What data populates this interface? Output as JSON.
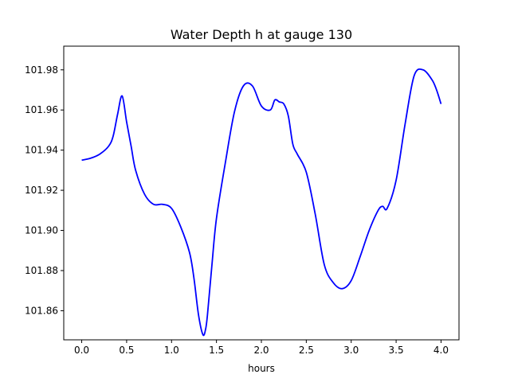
{
  "chart_data": {
    "type": "line",
    "title": "Water Depth h at gauge 130",
    "xlabel": "hours",
    "ylabel": "",
    "xlim": [
      -0.2,
      4.2
    ],
    "ylim": [
      101.8455,
      101.9918
    ],
    "grid": false,
    "legend": "none",
    "x_ticks": [
      0.0,
      0.5,
      1.0,
      1.5,
      2.0,
      2.5,
      3.0,
      3.5,
      4.0
    ],
    "x_tick_labels": [
      "0.0",
      "0.5",
      "1.0",
      "1.5",
      "2.0",
      "2.5",
      "3.0",
      "3.5",
      "4.0"
    ],
    "y_ticks": [
      101.86,
      101.88,
      101.9,
      101.92,
      101.94,
      101.96,
      101.98
    ],
    "y_tick_labels": [
      "101.86",
      "101.88",
      "101.90",
      "101.92",
      "101.94",
      "101.96",
      "101.98"
    ],
    "series": [
      {
        "color": "#0000ff",
        "x": [
          0.0,
          0.1,
          0.2,
          0.3,
          0.35,
          0.4,
          0.45,
          0.5,
          0.55,
          0.6,
          0.7,
          0.8,
          0.9,
          1.0,
          1.1,
          1.2,
          1.25,
          1.3,
          1.35,
          1.38,
          1.4,
          1.45,
          1.5,
          1.6,
          1.7,
          1.8,
          1.9,
          2.0,
          2.1,
          2.15,
          2.2,
          2.25,
          2.3,
          2.35,
          2.4,
          2.5,
          2.6,
          2.7,
          2.8,
          2.9,
          3.0,
          3.1,
          3.2,
          3.3,
          3.35,
          3.4,
          3.5,
          3.6,
          3.7,
          3.8,
          3.9,
          3.95,
          4.0
        ],
        "y": [
          101.935,
          101.936,
          101.938,
          101.942,
          101.947,
          101.958,
          101.967,
          101.954,
          101.942,
          101.93,
          101.918,
          101.913,
          101.913,
          101.911,
          101.902,
          101.889,
          101.876,
          101.858,
          101.848,
          101.851,
          101.858,
          101.883,
          101.906,
          101.934,
          101.959,
          101.972,
          101.972,
          101.962,
          101.96,
          101.965,
          101.964,
          101.963,
          101.957,
          101.943,
          101.938,
          101.929,
          101.908,
          101.883,
          101.874,
          101.871,
          101.875,
          101.887,
          101.9,
          101.91,
          101.912,
          101.911,
          101.925,
          101.953,
          101.977,
          101.98,
          101.975,
          101.97,
          101.963
        ]
      }
    ]
  }
}
